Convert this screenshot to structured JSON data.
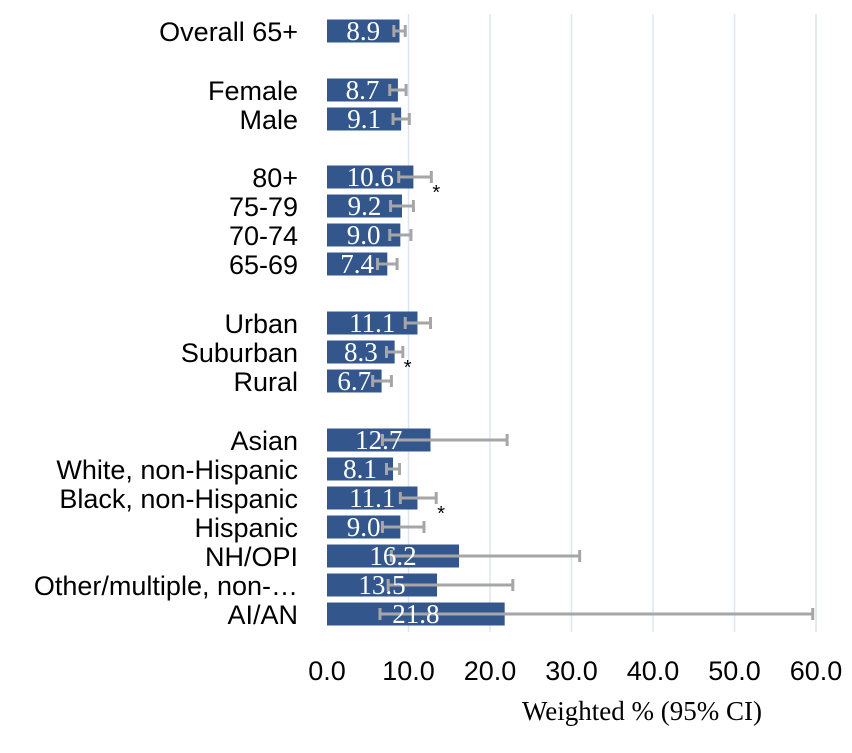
{
  "chart_data": {
    "type": "bar",
    "orientation": "horizontal",
    "xlabel": "Weighted % (95% CI)",
    "xlim": [
      0,
      60
    ],
    "xticks": [
      "0.0",
      "10.0",
      "20.0",
      "30.0",
      "40.0",
      "50.0",
      "60.0"
    ],
    "grid": "vertical",
    "colors": {
      "bar": "#33578C",
      "error_bar": "#A6A6A6",
      "grid": "#DCE6F2",
      "label": "#FFFFFF"
    },
    "categories": [
      {
        "label": "Overall 65+",
        "value": 8.9,
        "value_label": "8.9",
        "ci": [
          8.2,
          9.6
        ],
        "marker": ""
      },
      {
        "label": "Female",
        "value": 8.7,
        "value_label": "8.7",
        "ci": [
          7.7,
          9.7
        ],
        "marker": ""
      },
      {
        "label": "Male",
        "value": 9.1,
        "value_label": "9.1",
        "ci": [
          8.1,
          10.1
        ],
        "marker": ""
      },
      {
        "label": "80+",
        "value": 10.6,
        "value_label": "10.6",
        "ci": [
          8.8,
          12.8
        ],
        "marker": "*"
      },
      {
        "label": "75-79",
        "value": 9.2,
        "value_label": "9.2",
        "ci": [
          7.8,
          10.6
        ],
        "marker": ""
      },
      {
        "label": "70-74",
        "value": 9.0,
        "value_label": "9.0",
        "ci": [
          7.7,
          10.3
        ],
        "marker": ""
      },
      {
        "label": "65-69",
        "value": 7.4,
        "value_label": "7.4",
        "ci": [
          6.2,
          8.6
        ],
        "marker": ""
      },
      {
        "label": "Urban",
        "value": 11.1,
        "value_label": "11.1",
        "ci": [
          9.6,
          12.7
        ],
        "marker": ""
      },
      {
        "label": "Suburban",
        "value": 8.3,
        "value_label": "8.3",
        "ci": [
          7.3,
          9.3
        ],
        "marker": "*"
      },
      {
        "label": "Rural",
        "value": 6.7,
        "value_label": "6.7",
        "ci": [
          5.6,
          7.9
        ],
        "marker": ""
      },
      {
        "label": "Asian",
        "value": 12.7,
        "value_label": "12.7",
        "ci": [
          6.8,
          22.1
        ],
        "marker": ""
      },
      {
        "label": "White, non-Hispanic",
        "value": 8.1,
        "value_label": "8.1",
        "ci": [
          7.3,
          8.9
        ],
        "marker": ""
      },
      {
        "label": "Black, non-Hispanic",
        "value": 11.1,
        "value_label": "11.1",
        "ci": [
          9.0,
          13.4
        ],
        "marker": "*"
      },
      {
        "label": "Hispanic",
        "value": 9.0,
        "value_label": "9.0",
        "ci": [
          6.8,
          11.9
        ],
        "marker": ""
      },
      {
        "label": "NH/OPI",
        "value": 16.2,
        "value_label": "16.2",
        "ci": [
          7.9,
          31.0
        ],
        "marker": ""
      },
      {
        "label": "Other/multiple, non-…",
        "value": 13.5,
        "value_label": "13.5",
        "ci": [
          7.5,
          22.8
        ],
        "marker": ""
      },
      {
        "label": "AI/AN",
        "value": 21.8,
        "value_label": "21.8",
        "ci": [
          6.5,
          59.6
        ],
        "marker": ""
      }
    ]
  }
}
